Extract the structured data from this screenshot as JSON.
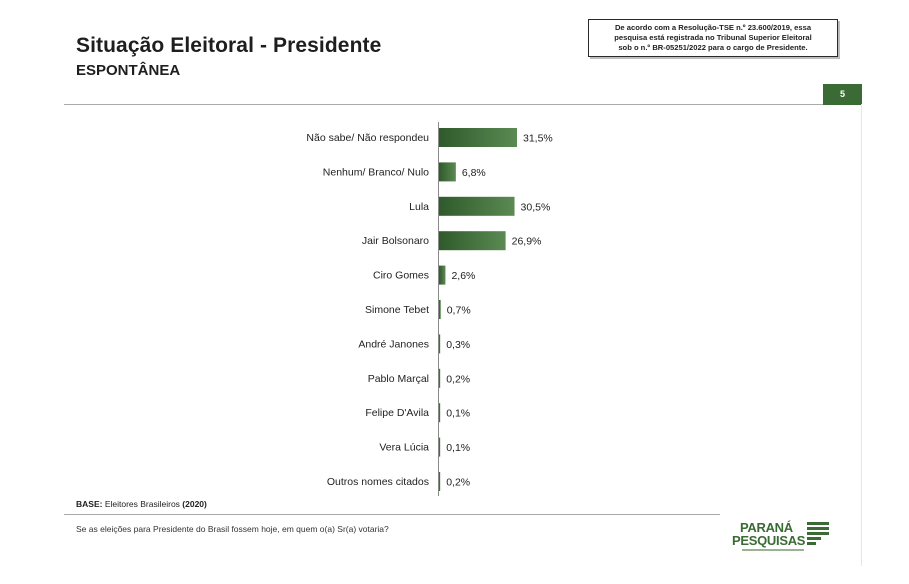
{
  "header": {
    "title": "Situação Eleitoral - Presidente",
    "subtitle": "ESPONTÂNEA",
    "notice_line1": "De acordo com a Resolução-TSE n.º 23.600/2019, essa",
    "notice_line2": "pesquisa está registrada no Tribunal Superior Eleitoral",
    "notice_line3": "sob o n.º BR-05251/2022 para o cargo de Presidente.",
    "page_number": "5"
  },
  "footer": {
    "base_label": "BASE:",
    "base_text": " Eleitores Brasileiros ",
    "base_year": "(2020)",
    "question": "Se as eleições para Presidente do Brasil fossem hoje, em quem o(a) Sr(a) votaria?"
  },
  "logo": {
    "line1": "PARANÁ",
    "line2": "PESQUISAS"
  },
  "colors": {
    "bar": "#3f6b3a",
    "accent": "#3b6b35"
  },
  "chart_data": {
    "type": "bar",
    "orientation": "horizontal",
    "categories": [
      "Não sabe/ Não respondeu",
      "Nenhum/ Branco/ Nulo",
      "Lula",
      "Jair Bolsonaro",
      "Ciro Gomes",
      "Simone Tebet",
      "André Janones",
      "Pablo Marçal",
      "Felipe D'Avila",
      "Vera Lúcia",
      "Outros nomes citados"
    ],
    "values": [
      31.5,
      6.8,
      30.5,
      26.9,
      2.6,
      0.7,
      0.3,
      0.2,
      0.1,
      0.1,
      0.2
    ],
    "labels": [
      "31,5%",
      "6,8%",
      "30,5%",
      "26,9%",
      "2,6%",
      "0,7%",
      "0,3%",
      "0,2%",
      "0,1%",
      "0,1%",
      "0,2%"
    ],
    "unit": "%",
    "grid": false
  }
}
